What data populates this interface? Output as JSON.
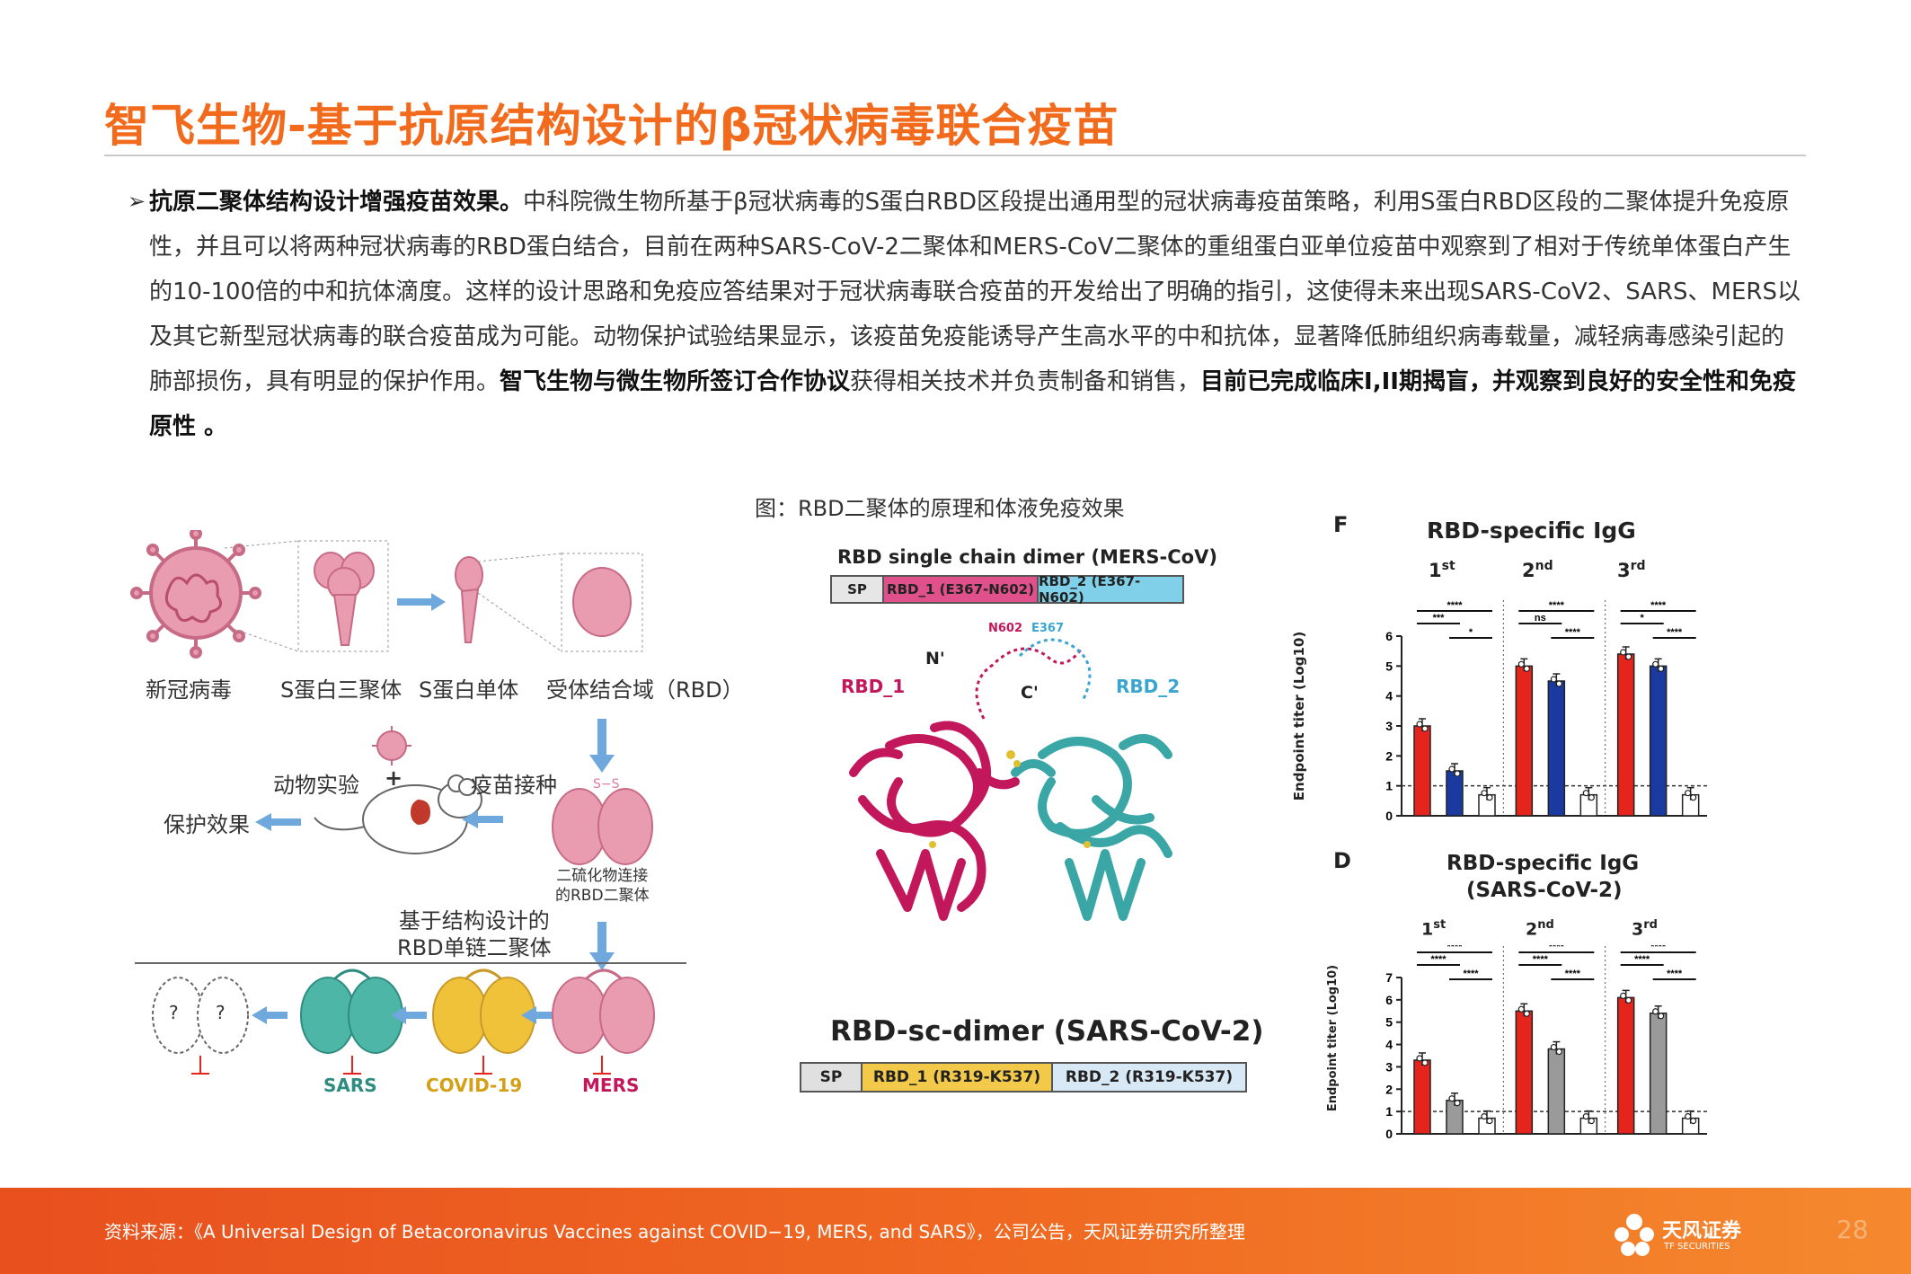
{
  "header": {
    "title": "智飞生物-基于抗原结构设计的β冠状病毒联合疫苗"
  },
  "body": {
    "bullet": "➢",
    "bold_intro": "抗原二聚体结构设计增强疫苗效果。",
    "text_1": "中科院微生物所基于β冠状病毒的S蛋白RBD区段提出通用型的冠状病毒疫苗策略，利用S蛋白RBD区段的二聚体提升免疫原性，并且可以将两种冠状病毒的RBD蛋白结合，目前在两种SARS-CoV-2二聚体和MERS-CoV二聚体的重组蛋白亚单位疫苗中观察到了相对于传统单体蛋白产生的10-100倍的中和抗体滴度。这样的设计思路和免疫应答结果对于冠状病毒联合疫苗的开发给出了明确的指引，这使得未来出现SARS-CoV2、SARS、MERS以及其它新型冠状病毒的联合疫苗成为可能。动物保护试验结果显示，该疫苗免疫能诱导产生高水平的中和抗体，显著降低肺组织病毒载量，减轻病毒感染引起的肺部损伤，具有明显的保护作用。",
    "bold_mid": "智飞生物与微生物所签订合作协议",
    "text_2": "获得相关技术并负责制备和销售，",
    "bold_end": "目前已完成临床I,II期揭盲，并观察到良好的安全性和免疫原性 。"
  },
  "figure": {
    "caption": "图：RBD二聚体的原理和体液免疫效果",
    "schematic": {
      "virus": "新冠病毒",
      "trimer": "S蛋白三聚体",
      "monomer": "S蛋白单体",
      "rbd": "受体结合域（RBD）",
      "animal_test": "动物实验",
      "plus": "+",
      "vaccination": "疫苗接种",
      "protection": "保护效果",
      "disulfide": "二硫化物连接\n的RBD二聚体",
      "ss": "S−S",
      "structure_design": "基于结构设计的\nRBD单链二聚体",
      "q": "?",
      "sars": "SARS",
      "covid": "COVID-19",
      "mers": "MERS"
    },
    "structure": {
      "mers_title": "RBD single chain dimer (MERS-CoV)",
      "mers_parts": [
        "SP",
        "RBD_1 (E367-N602)",
        "RBD_2 (E367-N602)"
      ],
      "label_rbd1": "RBD_1",
      "label_rbd2": "RBD_2",
      "label_n": "N'",
      "label_c": "C'",
      "label_n602": "N602",
      "label_e367": "E367",
      "sars_title": "RBD-sc-dimer (SARS-CoV-2)",
      "sars_parts": [
        "SP",
        "RBD_1 (R319-K537)",
        "RBD_2 (R319-K537)"
      ]
    },
    "colors": {
      "rbd1": "#c2185b",
      "rbd2": "#3aa6a6",
      "red": "#e5241e",
      "blue": "#1b3aa0",
      "gray": "#9a9a9a",
      "accent": "#f26b1d"
    }
  },
  "chart_data": [
    {
      "panel": "F",
      "type": "bar",
      "title": "RBD-specific IgG",
      "ylabel": "Endpoint titer (Log10)",
      "ylim": [
        0,
        6
      ],
      "yticks": [
        "0",
        "1",
        "2",
        "3",
        "4",
        "5",
        "6"
      ],
      "groups": [
        "1st",
        "2nd",
        "3rd"
      ],
      "series_colors": [
        "#e5241e",
        "#1b3aa0",
        "#ffffff"
      ],
      "values": [
        [
          3.0,
          1.5,
          0.7
        ],
        [
          5.0,
          4.5,
          0.7
        ],
        [
          5.4,
          5.0,
          0.7
        ]
      ],
      "limit_line": 1,
      "significance": [
        [
          "****",
          "***",
          "*"
        ],
        [
          "****",
          "ns",
          "****"
        ],
        [
          "****",
          "*",
          "****"
        ]
      ]
    },
    {
      "panel": "D",
      "type": "bar",
      "title": "RBD-specific IgG",
      "subtitle": "(SARS-CoV-2)",
      "ylabel": "Endpoint titer (Log10)",
      "ylim": [
        0,
        7
      ],
      "yticks": [
        "0",
        "1",
        "2",
        "3",
        "4",
        "5",
        "6",
        "7"
      ],
      "groups": [
        "1st",
        "2nd",
        "3rd"
      ],
      "series_colors": [
        "#e5241e",
        "#9a9a9a",
        "#ffffff"
      ],
      "values": [
        [
          3.3,
          1.5,
          0.7
        ],
        [
          5.5,
          3.8,
          0.7
        ],
        [
          6.1,
          5.4,
          0.7
        ]
      ],
      "limit_line": 1,
      "significance": [
        [
          "****",
          "****",
          "****"
        ],
        [
          "****",
          "****",
          "****"
        ],
        [
          "****",
          "****",
          "****"
        ]
      ]
    }
  ],
  "footer": {
    "source": "资料来源：《A Universal Design of Betacoronavirus Vaccines against COVID−19, MERS, and SARS》，公司公告，天风证券研究所整理",
    "logo": "天风证券",
    "logo_sub": "TF SECURITIES",
    "page": "28"
  }
}
